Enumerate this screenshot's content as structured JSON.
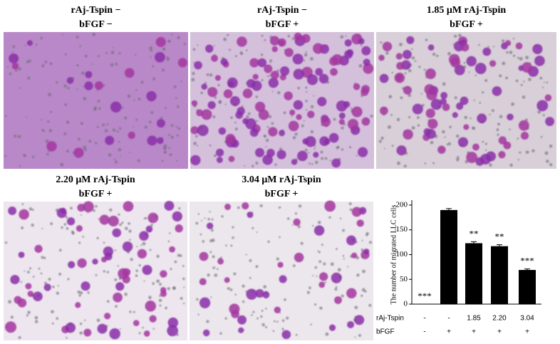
{
  "panels": [
    {
      "lines": [
        "rAj-Tspin −",
        "bFGF −"
      ]
    },
    {
      "lines": [
        "rAj-Tspin −",
        "bFGF +"
      ]
    },
    {
      "lines": [
        "1.85 μM rAj-Tspin",
        "bFGF +"
      ]
    },
    {
      "lines": [
        "2.20 μM rAj-Tspin",
        "bFGF +"
      ]
    },
    {
      "lines": [
        "3.04 μM rAj-Tspin",
        "bFGF +"
      ]
    }
  ],
  "chart_data": {
    "type": "bar",
    "ylabel": "The number of migrated LLC cells",
    "values": [
      0,
      190,
      123,
      117,
      69
    ],
    "errors": [
      0,
      3,
      3,
      3,
      2
    ],
    "annotations": [
      "***",
      null,
      "**",
      "**",
      "***"
    ],
    "groups": [
      {
        "name": "rAj-Tspin",
        "labels": [
          "-",
          "-",
          "1.85",
          "2.20",
          "3.04"
        ]
      },
      {
        "name": "bFGF",
        "labels": [
          "-",
          "+",
          "+",
          "+",
          "+"
        ]
      }
    ],
    "color": "#000000",
    "ylim": [
      0,
      210
    ],
    "yticks": [
      0,
      50,
      100,
      150,
      200
    ]
  }
}
